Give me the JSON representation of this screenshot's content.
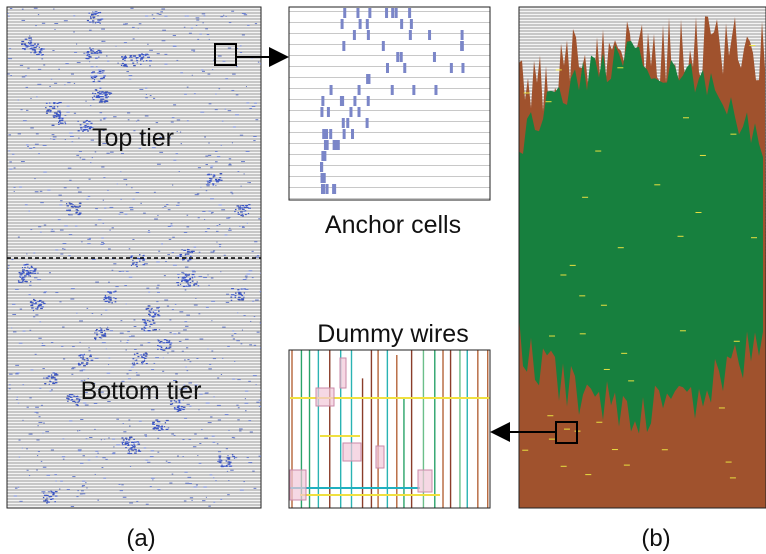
{
  "panel_a": {
    "top_label": "Top tier",
    "bottom_label": "Bottom tier",
    "caption": "(a)"
  },
  "zoom_top": {
    "caption": "Anchor cells"
  },
  "zoom_bottom": {
    "caption": "Dummy wires"
  },
  "panel_b": {
    "caption": "(b)"
  }
}
